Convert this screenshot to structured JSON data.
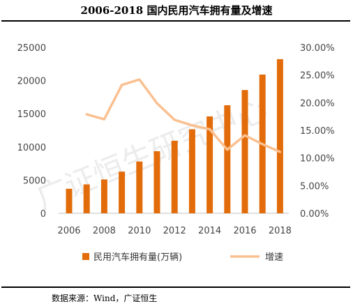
{
  "title": "2006-2018 国内民用汽车拥有量及增速",
  "source": "数据来源：Wind，广证恒生",
  "watermark": "广证恒生研究中心",
  "chart_data": {
    "type": "bar+line",
    "title": "2006-2018 国内民用汽车拥有量及增速",
    "categories": [
      2006,
      2007,
      2008,
      2009,
      2010,
      2011,
      2012,
      2013,
      2014,
      2015,
      2016,
      2017,
      2018
    ],
    "x_tick_labels": [
      "2006",
      "2008",
      "2010",
      "2012",
      "2014",
      "2016",
      "2018"
    ],
    "series": [
      {
        "name": "民用汽车拥有量(万辆)",
        "type": "bar",
        "axis": "left",
        "color": "#E36C0A",
        "values": [
          3697,
          4358,
          5100,
          6281,
          7802,
          9356,
          10933,
          12670,
          14598,
          16284,
          18575,
          20907,
          23231
        ]
      },
      {
        "name": "增速",
        "type": "line",
        "axis": "right",
        "color": "#FAC090",
        "values": [
          null,
          17.9,
          17.0,
          23.2,
          24.2,
          19.9,
          16.9,
          15.9,
          15.2,
          11.5,
          14.1,
          12.5,
          11.1
        ]
      }
    ],
    "y_left": {
      "min": 0,
      "max": 25000,
      "ticks": [
        "0",
        "5000",
        "10000",
        "15000",
        "20000",
        "25000"
      ]
    },
    "y_right": {
      "min": 0,
      "max": 30,
      "ticks": [
        "0.00%",
        "5.00%",
        "10.00%",
        "15.00%",
        "20.00%",
        "25.00%",
        "30.00%"
      ]
    },
    "grid": false,
    "legend_position": "bottom"
  }
}
